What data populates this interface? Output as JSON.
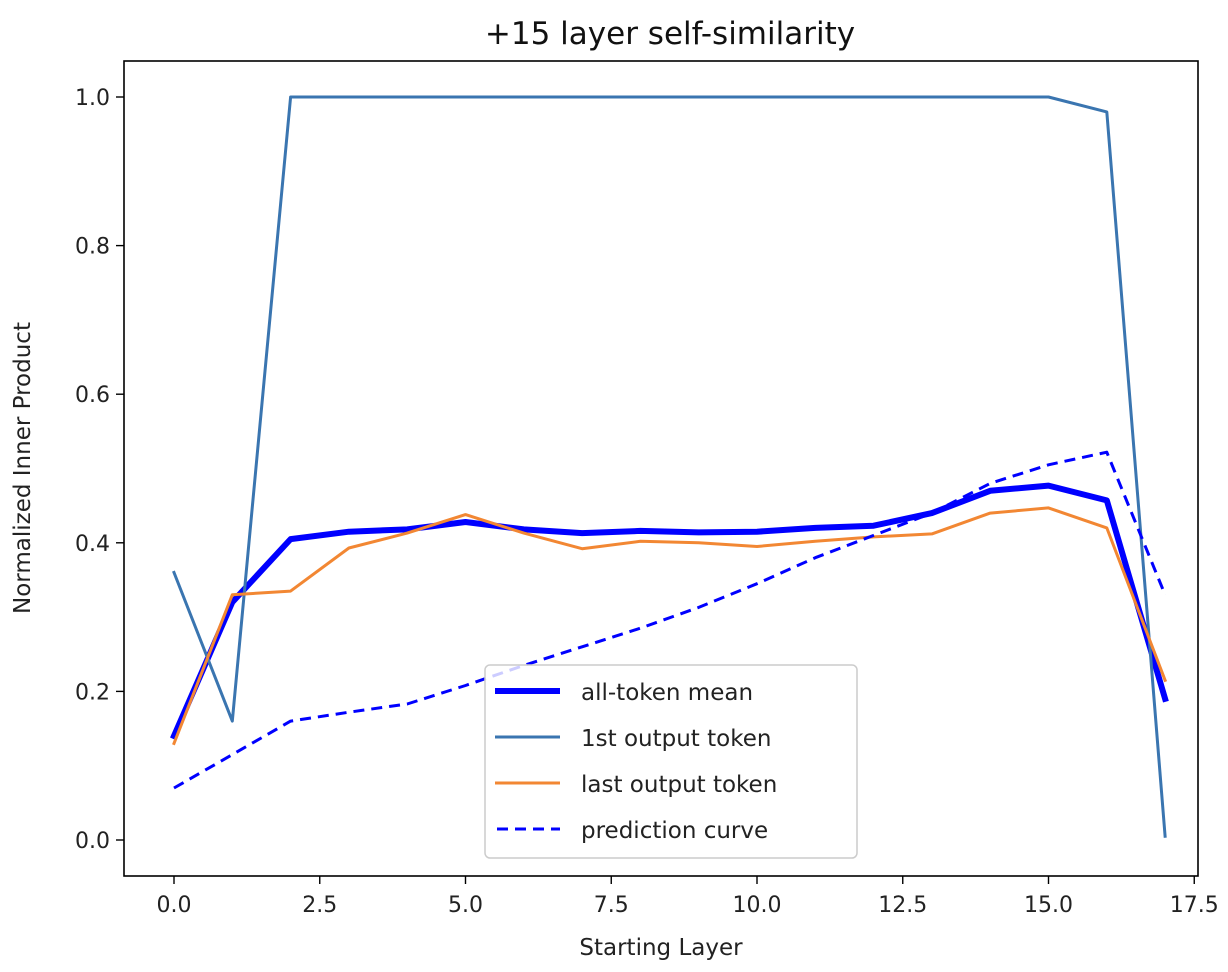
{
  "chart_data": {
    "type": "line",
    "title": "+15 layer self-similarity",
    "xlabel": "Starting Layer",
    "ylabel": "Normalized Inner Product",
    "xlim": [
      -0.85,
      17.6
    ],
    "ylim": [
      -0.05,
      1.05
    ],
    "xticks": [
      "0.0",
      "2.5",
      "5.0",
      "7.5",
      "10.0",
      "12.5",
      "15.0",
      "17.5"
    ],
    "yticks": [
      "0.0",
      "0.2",
      "0.4",
      "0.6",
      "0.8",
      "1.0"
    ],
    "grid": false,
    "legend_placement": "lower-center",
    "x": [
      0,
      1,
      2,
      3,
      4,
      5,
      6,
      7,
      8,
      9,
      10,
      11,
      12,
      13,
      14,
      15,
      16,
      17
    ],
    "series": [
      {
        "name": "all-token mean",
        "color": "#0000ff",
        "style": "solid-thick",
        "values": [
          0.14,
          0.32,
          0.405,
          0.415,
          0.418,
          0.428,
          0.418,
          0.413,
          0.416,
          0.414,
          0.415,
          0.42,
          0.423,
          0.44,
          0.47,
          0.477,
          0.457,
          0.19
        ]
      },
      {
        "name": "1st output token",
        "color": "#3a75b0",
        "style": "solid",
        "values": [
          0.36,
          0.16,
          1.0,
          1.0,
          1.0,
          1.0,
          1.0,
          1.0,
          1.0,
          1.0,
          1.0,
          1.0,
          1.0,
          1.0,
          1.0,
          1.0,
          0.98,
          0.005
        ]
      },
      {
        "name": "last output token",
        "color": "#f28733",
        "style": "solid",
        "values": [
          0.13,
          0.33,
          0.335,
          0.393,
          0.413,
          0.438,
          0.413,
          0.392,
          0.402,
          0.4,
          0.395,
          0.402,
          0.408,
          0.412,
          0.44,
          0.447,
          0.42,
          0.215
        ]
      },
      {
        "name": "prediction curve",
        "color": "#0000ff",
        "style": "dashed",
        "values": [
          0.07,
          0.115,
          0.16,
          0.172,
          0.183,
          0.208,
          0.235,
          0.26,
          0.285,
          0.313,
          0.345,
          0.38,
          0.41,
          0.44,
          0.48,
          0.505,
          0.522,
          0.33
        ]
      }
    ]
  }
}
